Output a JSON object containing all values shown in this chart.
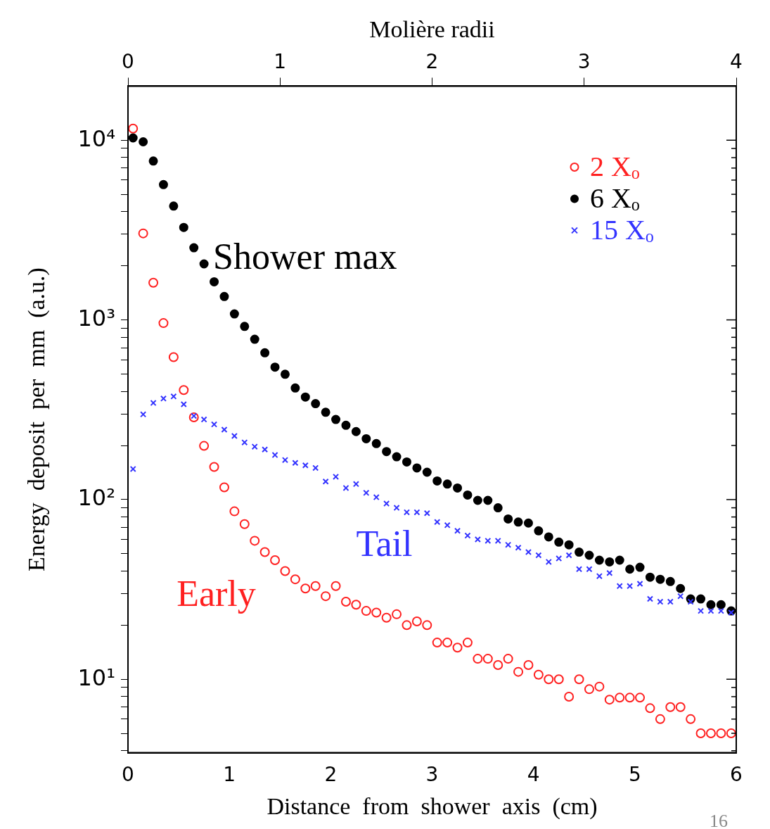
{
  "chart_data": {
    "type": "scatter",
    "xlabel": "Distance  from  shower  axis  (cm)",
    "ylabel": "Energy  deposit  per  mm  (a.u.)",
    "x2label": "Molière radii",
    "x": [
      0.05,
      0.15,
      0.25,
      0.35,
      0.45,
      0.55,
      0.65,
      0.75,
      0.85,
      0.95,
      1.05,
      1.15,
      1.25,
      1.35,
      1.45,
      1.55,
      1.65,
      1.75,
      1.85,
      1.95,
      2.05,
      2.15,
      2.25,
      2.35,
      2.45,
      2.55,
      2.65,
      2.75,
      2.85,
      2.95,
      3.05,
      3.15,
      3.25,
      3.35,
      3.45,
      3.55,
      3.65,
      3.75,
      3.85,
      3.95,
      4.05,
      4.15,
      4.25,
      4.35,
      4.45,
      4.55,
      4.65,
      4.75,
      4.85,
      4.95,
      5.05,
      5.15,
      5.25,
      5.35,
      5.45,
      5.55,
      5.65,
      5.75,
      5.85,
      5.95
    ],
    "series": [
      {
        "name": "2 Xₒ",
        "color": "#ff2020",
        "marker": "circle",
        "values": [
          11600,
          3030,
          1610,
          960,
          620,
          407,
          287,
          199,
          152,
          117,
          86,
          73,
          59,
          51,
          46,
          40,
          36,
          32,
          33,
          29,
          33,
          27,
          26,
          24,
          23.5,
          22,
          23,
          20,
          21,
          20,
          16,
          16,
          15,
          16,
          13,
          13,
          12,
          13,
          11,
          12,
          10.6,
          10,
          10,
          8,
          10,
          8.8,
          9.1,
          7.7,
          7.9,
          7.9,
          7.9,
          6.9,
          6,
          7,
          7,
          6,
          5,
          5,
          5,
          5
        ]
      },
      {
        "name": "6 Xₒ",
        "color": "#000000",
        "marker": "circle",
        "values": [
          10300,
          9800,
          7660,
          5660,
          4300,
          3270,
          2520,
          2050,
          1630,
          1350,
          1080,
          920,
          780,
          656,
          546,
          498,
          418,
          372,
          342,
          306,
          279,
          259,
          239,
          218,
          205,
          185,
          173,
          162,
          150,
          142,
          127,
          122,
          116,
          106,
          99,
          99,
          90,
          78,
          75,
          74,
          67,
          62,
          58,
          56,
          51,
          49,
          46,
          45,
          46,
          41,
          42,
          37,
          36,
          35,
          32,
          28,
          28,
          26,
          26,
          24
        ]
      },
      {
        "name": "15 Xₒ",
        "color": "#3333ff",
        "marker": "cross",
        "values": [
          148,
          298,
          345,
          365,
          375,
          339,
          292,
          279,
          262,
          245,
          226,
          208,
          197,
          190,
          177,
          166,
          160,
          155,
          150,
          126,
          134,
          116,
          122,
          109,
          103,
          95,
          90,
          85,
          85,
          84,
          75,
          72,
          67,
          63,
          60,
          59,
          59,
          56,
          54,
          51,
          49,
          45,
          47,
          49,
          41,
          41,
          37.5,
          39,
          33,
          33,
          34,
          28,
          27,
          27,
          29,
          27,
          24,
          24,
          24,
          23.5
        ]
      }
    ],
    "xlim": [
      0,
      6
    ],
    "xticks": [
      0,
      1,
      2,
      3,
      4,
      5,
      6
    ],
    "x2lim": [
      0,
      4
    ],
    "x2ticks": [
      0,
      1,
      2,
      3,
      4
    ],
    "log": true,
    "ylim": [
      3.9,
      20000
    ],
    "yticks": [
      {
        "value": 4,
        "label": null
      },
      {
        "value": 5,
        "label": null
      },
      {
        "value": 6,
        "label": null
      },
      {
        "value": 7,
        "label": null
      },
      {
        "value": 8,
        "label": null
      },
      {
        "value": 9,
        "label": null
      },
      {
        "value": 10,
        "label": "10¹"
      },
      {
        "value": 20,
        "label": null
      },
      {
        "value": 30,
        "label": null
      },
      {
        "value": 40,
        "label": null
      },
      {
        "value": 50,
        "label": null
      },
      {
        "value": 60,
        "label": null
      },
      {
        "value": 70,
        "label": null
      },
      {
        "value": 80,
        "label": null
      },
      {
        "value": 90,
        "label": null
      },
      {
        "value": 100,
        "label": "10²"
      },
      {
        "value": 200,
        "label": null
      },
      {
        "value": 300,
        "label": null
      },
      {
        "value": 400,
        "label": null
      },
      {
        "value": 500,
        "label": null
      },
      {
        "value": 600,
        "label": null
      },
      {
        "value": 700,
        "label": null
      },
      {
        "value": 800,
        "label": null
      },
      {
        "value": 900,
        "label": null
      },
      {
        "value": 1000,
        "label": "10³"
      },
      {
        "value": 2000,
        "label": null
      },
      {
        "value": 3000,
        "label": null
      },
      {
        "value": 4000,
        "label": null
      },
      {
        "value": 5000,
        "label": null
      },
      {
        "value": 6000,
        "label": null
      },
      {
        "value": 7000,
        "label": null
      },
      {
        "value": 8000,
        "label": null
      },
      {
        "value": 9000,
        "label": null
      },
      {
        "value": 10000,
        "label": "10⁴"
      }
    ],
    "grid": false,
    "legend": "top right",
    "annotations": [
      "Early",
      "Shower max",
      "Tail",
      "16"
    ]
  }
}
